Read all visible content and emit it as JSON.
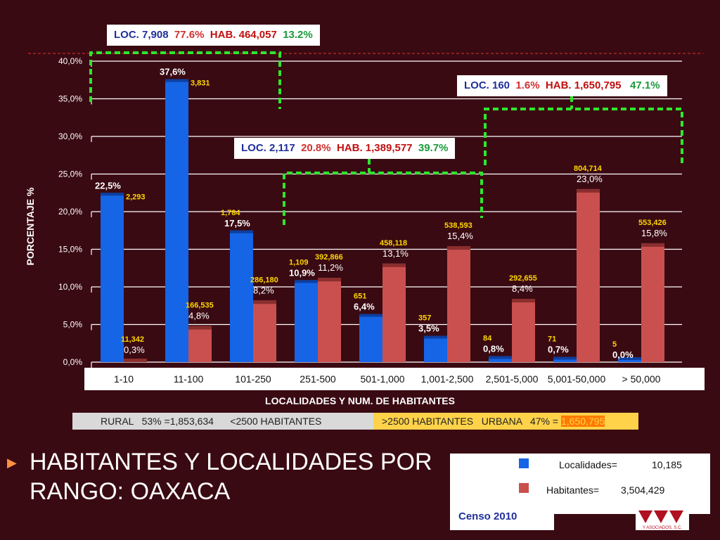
{
  "colors": {
    "background": "#3a0a12",
    "localidades": "#1565e6",
    "habitantes": "#c9504e",
    "callout_dash": "#2ee62e",
    "label_yellow": "#ffd700"
  },
  "callouts": [
    {
      "parts": [
        "LOC. 7,908",
        "77.6%",
        "HAB. 464,057",
        "13.2%"
      ]
    },
    {
      "parts": [
        "LOC. 2,117",
        "20.8%",
        "HAB. 1,389,577",
        "39.7%"
      ]
    },
    {
      "parts": [
        "LOC. 160",
        "1.6%",
        "HAB. 1,650,795",
        "47.1%"
      ]
    }
  ],
  "chart_data": {
    "type": "bar",
    "ylabel": "PORCENTAJE %",
    "xlabel": "LOCALIDADES Y NUM. DE HABITANTES",
    "ylim": [
      0,
      40
    ],
    "ytick_labels": [
      "0,0%",
      "5,0%",
      "10,0%",
      "15,0%",
      "20,0%",
      "25,0%",
      "30,0%",
      "35,0%",
      "40,0%"
    ],
    "categories": [
      "1-10",
      "11-100",
      "101-250",
      "251-500",
      "501-1,000",
      "1,001-2,500",
      "2,501-5,000",
      "5,001-50,000",
      "> 50,000"
    ],
    "series": [
      {
        "name": "Localidades",
        "values": [
          22.5,
          37.6,
          17.5,
          10.9,
          6.4,
          3.5,
          0.8,
          0.7,
          0.0
        ],
        "pct_labels": [
          "22,5%",
          "37,6%",
          "17,5%",
          "10,9%",
          "6,4%",
          "3,5%",
          "0,8%",
          "0,7%",
          "0,0%"
        ],
        "counts": [
          "2,293",
          "3,831",
          "1,784",
          "1,109",
          "651",
          "357",
          "84",
          "71",
          "5"
        ]
      },
      {
        "name": "Habitantes",
        "values": [
          0.3,
          4.8,
          8.2,
          11.2,
          13.1,
          15.4,
          8.4,
          23.0,
          15.8
        ],
        "pct_labels": [
          "0,3%",
          "4,8%",
          "8,2%",
          "11,2%",
          "13,1%",
          "15,4%",
          "8,4%",
          "23,0%",
          "15,8%"
        ],
        "counts": [
          "11,342",
          "166,535",
          "286,180",
          "392,866",
          "458,118",
          "538,593",
          "292,655",
          "804,714",
          "553,426"
        ]
      }
    ],
    "grid": true
  },
  "rural_bar": {
    "text": "RURAL   53% =1,853,634      <2500 HABITANTES"
  },
  "urban_bar": {
    "text": ">2500 HABITANTES   URBANA   47% = ",
    "highlight": "1,650,795"
  },
  "title": "HABITANTES Y LOCALIDADES POR RANGO: OAXACA",
  "legend": {
    "localidades_label": "Localidades=",
    "localidades_value": "10,185",
    "habitantes_label": "Habitantes=",
    "habitantes_value": "3,504,429"
  },
  "source": "Censo 2010",
  "logo_text": "Y ASOCIADOS, S.C."
}
